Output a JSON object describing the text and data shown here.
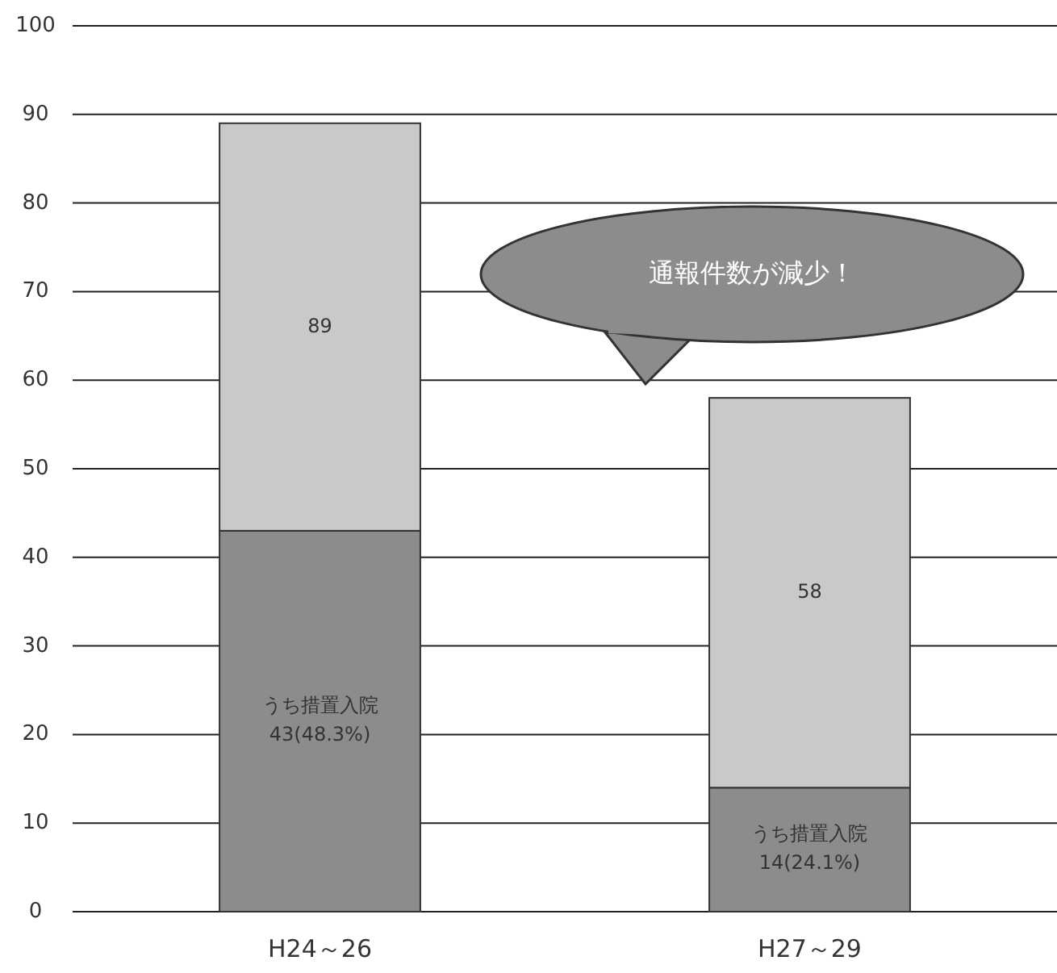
{
  "chart_data": {
    "type": "bar",
    "stacked": true,
    "categories": [
      "H24～26",
      "H27～29"
    ],
    "series": [
      {
        "color": "#8c8c8c",
        "values": [
          43,
          14
        ],
        "value_labels": [
          "うち措置入院\n43(48.3%)",
          "うち措置入院\n14(24.1%)"
        ]
      },
      {
        "color": "#c9c9c9",
        "values": [
          46,
          44
        ]
      }
    ],
    "ylim": [
      0,
      100
    ],
    "yticks": [
      0,
      10,
      20,
      30,
      40,
      50,
      60,
      70,
      80,
      90,
      100
    ],
    "grid": "y",
    "totals": [
      "89",
      "58"
    ],
    "annotations": [
      "通報件数が減少！"
    ]
  }
}
